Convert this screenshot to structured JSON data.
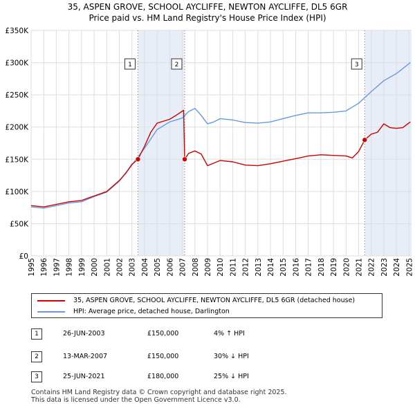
{
  "chart_data": {
    "type": "line",
    "title": "35, ASPEN GROVE, SCHOOL AYCLIFFE, NEWTON AYCLIFFE, DL5 6GR",
    "subtitle": "Price paid vs. HM Land Registry's House Price Index (HPI)",
    "xlabel": "",
    "ylabel": "",
    "xlim": [
      1995,
      2025.2
    ],
    "ylim": [
      0,
      350000
    ],
    "x_ticks": [
      "1995",
      "1996",
      "1997",
      "1998",
      "1999",
      "2000",
      "2001",
      "2002",
      "2003",
      "2004",
      "2005",
      "2006",
      "2007",
      "2008",
      "2009",
      "2010",
      "2011",
      "2012",
      "2013",
      "2014",
      "2015",
      "2016",
      "2017",
      "2018",
      "2019",
      "2020",
      "2021",
      "2022",
      "2023",
      "2024",
      "2025"
    ],
    "y_ticks": [
      {
        "value": 0,
        "label": "£0"
      },
      {
        "value": 50000,
        "label": "£50K"
      },
      {
        "value": 100000,
        "label": "£100K"
      },
      {
        "value": 150000,
        "label": "£150K"
      },
      {
        "value": 200000,
        "label": "£200K"
      },
      {
        "value": 250000,
        "label": "£250K"
      },
      {
        "value": 300000,
        "label": "£300K"
      },
      {
        "value": 350000,
        "label": "£350K"
      }
    ],
    "grid": true,
    "series": [
      {
        "name": "35, ASPEN GROVE, SCHOOL AYCLIFFE, NEWTON AYCLIFFE, DL5 6GR (detached house)",
        "color": "#cc0000",
        "x": [
          1995,
          1996,
          1997,
          1998,
          1999,
          2000,
          2001,
          2002,
          2002.5,
          2003.0,
          2003.48,
          2004,
          2004.5,
          2005,
          2006,
          2006.5,
          2007.1,
          2007.19,
          2007.5,
          2008,
          2008.5,
          2009,
          2009.5,
          2010,
          2011,
          2012,
          2013,
          2014,
          2015,
          2016,
          2017,
          2018,
          2019,
          2020,
          2020.5,
          2021.0,
          2021.48,
          2022,
          2022.5,
          2023,
          2023.5,
          2024,
          2024.5,
          2025.1
        ],
        "y": [
          78000,
          76000,
          80000,
          84000,
          86000,
          93000,
          100000,
          117000,
          128000,
          142000,
          150000,
          170000,
          192000,
          206000,
          212000,
          218000,
          226000,
          150000,
          159000,
          163000,
          158000,
          140000,
          144000,
          148000,
          146000,
          141000,
          140000,
          143000,
          147000,
          151000,
          155000,
          157000,
          156000,
          155000,
          152000,
          162000,
          180000,
          189000,
          192000,
          205000,
          199000,
          198000,
          199000,
          208000
        ]
      },
      {
        "name": "HPI: Average price, detached house, Darlington",
        "color": "#6699dd",
        "x": [
          1995,
          1996,
          1997,
          1998,
          1999,
          2000,
          2001,
          2002,
          2003,
          2004,
          2005,
          2006,
          2007,
          2007.5,
          2008,
          2008.5,
          2009,
          2009.5,
          2010,
          2011,
          2012,
          2013,
          2014,
          2015,
          2016,
          2017,
          2018,
          2019,
          2020,
          2021,
          2022,
          2023,
          2024,
          2025.1
        ],
        "y": [
          76000,
          74000,
          78000,
          82000,
          84000,
          92000,
          99000,
          116000,
          141000,
          167000,
          196000,
          208000,
          214000,
          224000,
          229000,
          218000,
          205000,
          208000,
          213000,
          211000,
          207000,
          206000,
          208000,
          213000,
          218000,
          222000,
          222000,
          223000,
          225000,
          237000,
          255000,
          272000,
          283000,
          300000
        ]
      }
    ],
    "sales": [
      {
        "id": "1",
        "x": 2003.48,
        "y": 150000,
        "date": "26-JUN-2003",
        "price": "£150,000",
        "hpi": "4% ↑ HPI"
      },
      {
        "id": "2",
        "x": 2007.19,
        "y": 150000,
        "date": "13-MAR-2007",
        "price": "£150,000",
        "hpi": "30% ↓ HPI"
      },
      {
        "id": "3",
        "x": 2021.48,
        "y": 180000,
        "date": "25-JUN-2021",
        "price": "£180,000",
        "hpi": "25% ↓ HPI"
      }
    ],
    "shaded_periods": [
      [
        2003.48,
        2007.19
      ],
      [
        2021.48,
        2025.2
      ]
    ]
  },
  "legend": {
    "series_label": "35, ASPEN GROVE, SCHOOL AYCLIFFE, NEWTON AYCLIFFE, DL5 6GR (detached house)",
    "hpi_label": "HPI: Average price, detached house, Darlington",
    "series_color": "#cc0000",
    "hpi_color": "#6699dd"
  },
  "footer": {
    "line1": "Contains HM Land Registry data © Crown copyright and database right 2025.",
    "line2": "This data is licensed under the Open Government Licence v3.0."
  }
}
